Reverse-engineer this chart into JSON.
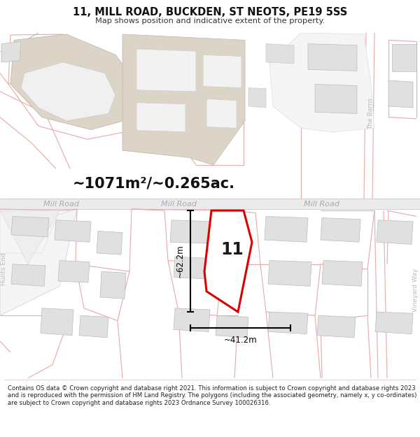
{
  "title": "11, MILL ROAD, BUCKDEN, ST NEOTS, PE19 5SS",
  "subtitle": "Map shows position and indicative extent of the property.",
  "footer": "Contains OS data © Crown copyright and database right 2021. This information is subject to Crown copyright and database rights 2023 and is reproduced with the permission of HM Land Registry. The polygons (including the associated geometry, namely x, y co-ordinates) are subject to Crown copyright and database rights 2023 Ordnance Survey 100026316.",
  "area_text": "~1071m²/~0.265ac.",
  "dim_vertical": "~62.2m",
  "dim_horizontal": "~41.2m",
  "label_11": "11",
  "road_label1": "Mill Road",
  "road_label2": "Mill Road",
  "road_label3": "Mill Road",
  "side_label_left": "Hunts End",
  "side_label_right": "Vineyard Way",
  "top_right_label": "The Barns",
  "bg_color": "#ffffff",
  "map_bg": "#f9f9f9",
  "road_line_color": "#c8c8c8",
  "highlight_color": "#dd0000",
  "pink": "#e8a8a8",
  "gray_bldg": "#e0e0e0",
  "tan_bldg": "#ddd4c8",
  "dim_line_color": "#000000",
  "text_color": "#222222",
  "road_text_color": "#aaaaaa",
  "side_text_color": "#bbbbbb"
}
